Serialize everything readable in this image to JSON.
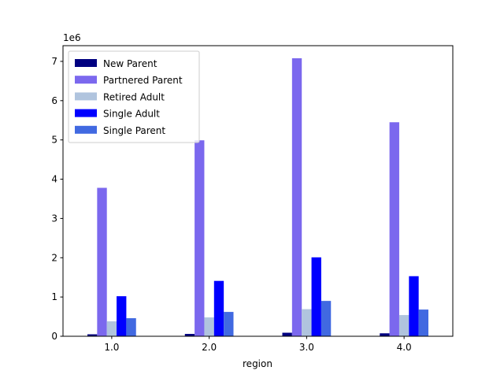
{
  "chart_data": {
    "type": "bar",
    "xlabel": "region",
    "ylabel": "",
    "title": "",
    "y_offset_label": "1e6",
    "y_scale": 1000000,
    "ylim": [
      0,
      7400000
    ],
    "yticks": [
      0,
      1,
      2,
      3,
      4,
      5,
      6,
      7
    ],
    "categories": [
      "1.0",
      "2.0",
      "3.0",
      "4.0"
    ],
    "legend_position": "upper-left",
    "grid": false,
    "series": [
      {
        "name": "New Parent",
        "color": "#000080",
        "values": [
          50000,
          60000,
          90000,
          75000
        ]
      },
      {
        "name": "Partnered Parent",
        "color": "#7b68ee",
        "values": [
          3780000,
          4990000,
          7080000,
          5450000
        ]
      },
      {
        "name": "Retired Adult",
        "color": "#b0c4de",
        "values": [
          380000,
          480000,
          690000,
          540000
        ]
      },
      {
        "name": "Single Adult",
        "color": "#0000ff",
        "values": [
          1020000,
          1410000,
          2010000,
          1530000
        ]
      },
      {
        "name": "Single Parent",
        "color": "#4169e1",
        "values": [
          460000,
          620000,
          900000,
          680000
        ]
      }
    ]
  }
}
